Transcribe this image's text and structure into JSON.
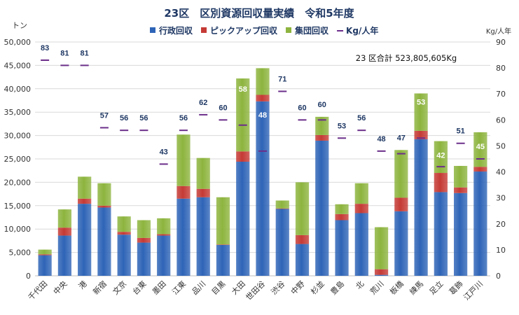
{
  "chart_data": {
    "type": "bar",
    "title": "23区　区別資源回収量実績　令和5年度",
    "ylabel_left": "トン",
    "ylabel_right": "Kg/人年",
    "ylim_left": [
      0,
      50000
    ],
    "yticks_left": [
      "0",
      "5,000",
      "10,000",
      "15,000",
      "20,000",
      "25,000",
      "30,000",
      "35,000",
      "40,000",
      "45,000",
      "50,000"
    ],
    "ylim_right": [
      0,
      90
    ],
    "yticks_right": [
      "0",
      "10",
      "20",
      "30",
      "40",
      "50",
      "60",
      "70",
      "80",
      "90"
    ],
    "annotation": "23 区合計 523,805,605Kg",
    "legend_position": "top",
    "categories": [
      "千代田",
      "中央",
      "港",
      "新宿",
      "文京",
      "台東",
      "墨田",
      "江東",
      "品川",
      "目黒",
      "大田",
      "世田谷",
      "渋谷",
      "中野",
      "杉並",
      "豊島",
      "北",
      "荒川",
      "板橋",
      "練馬",
      "足立",
      "葛飾",
      "江戸川"
    ],
    "series": [
      {
        "name": "行政回収",
        "color": "#2E64B7",
        "values": [
          4400,
          8600,
          15400,
          14600,
          8800,
          7100,
          8600,
          16500,
          16800,
          6600,
          24400,
          37300,
          14300,
          6800,
          28900,
          11900,
          13400,
          200,
          13800,
          29200,
          17900,
          17700,
          22300
        ]
      },
      {
        "name": "ピックアップ回収",
        "color": "#C53A35",
        "values": [
          200,
          1700,
          1100,
          400,
          600,
          1000,
          300,
          2700,
          1800,
          100,
          2200,
          1400,
          100,
          1900,
          1200,
          1300,
          2000,
          1200,
          2900,
          1800,
          4100,
          1200,
          1000
        ]
      },
      {
        "name": "集団回収",
        "color": "#8DB43E",
        "values": [
          1000,
          3900,
          4700,
          4800,
          3300,
          3800,
          3400,
          11000,
          6600,
          10100,
          15600,
          5700,
          1700,
          11300,
          3900,
          2100,
          4400,
          9000,
          10200,
          8000,
          6800,
          4600,
          7400
        ]
      },
      {
        "name": "Kg/人年",
        "color": "#6B2E8A",
        "axis": "right",
        "values": [
          83,
          81,
          81,
          57,
          56,
          56,
          43,
          56,
          62,
          60,
          58,
          48,
          71,
          60,
          60,
          53,
          56,
          48,
          47,
          53,
          42,
          51,
          45
        ]
      }
    ]
  }
}
